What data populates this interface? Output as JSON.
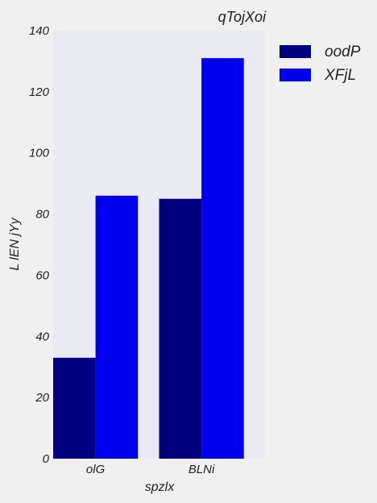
{
  "chart_data": {
    "type": "bar",
    "title": "qTojXoi",
    "xlabel": "spzlx",
    "ylabel": "L lEN jYy",
    "categories": [
      "olG",
      "BLNi"
    ],
    "series": [
      {
        "name": "oodP",
        "values": [
          33,
          85
        ]
      },
      {
        "name": "XFjL",
        "values": [
          86,
          131
        ]
      }
    ],
    "ylim": [
      0,
      140
    ],
    "yticks": [
      0,
      20,
      40,
      60,
      80,
      100,
      120,
      140
    ],
    "grid": false,
    "legend_position": "outside-right-top",
    "colors": {
      "oodP": "#000080",
      "XFjL": "#0000ee",
      "plot_background": "#eaeaf2",
      "figure_background": "#f0f0f0"
    }
  }
}
